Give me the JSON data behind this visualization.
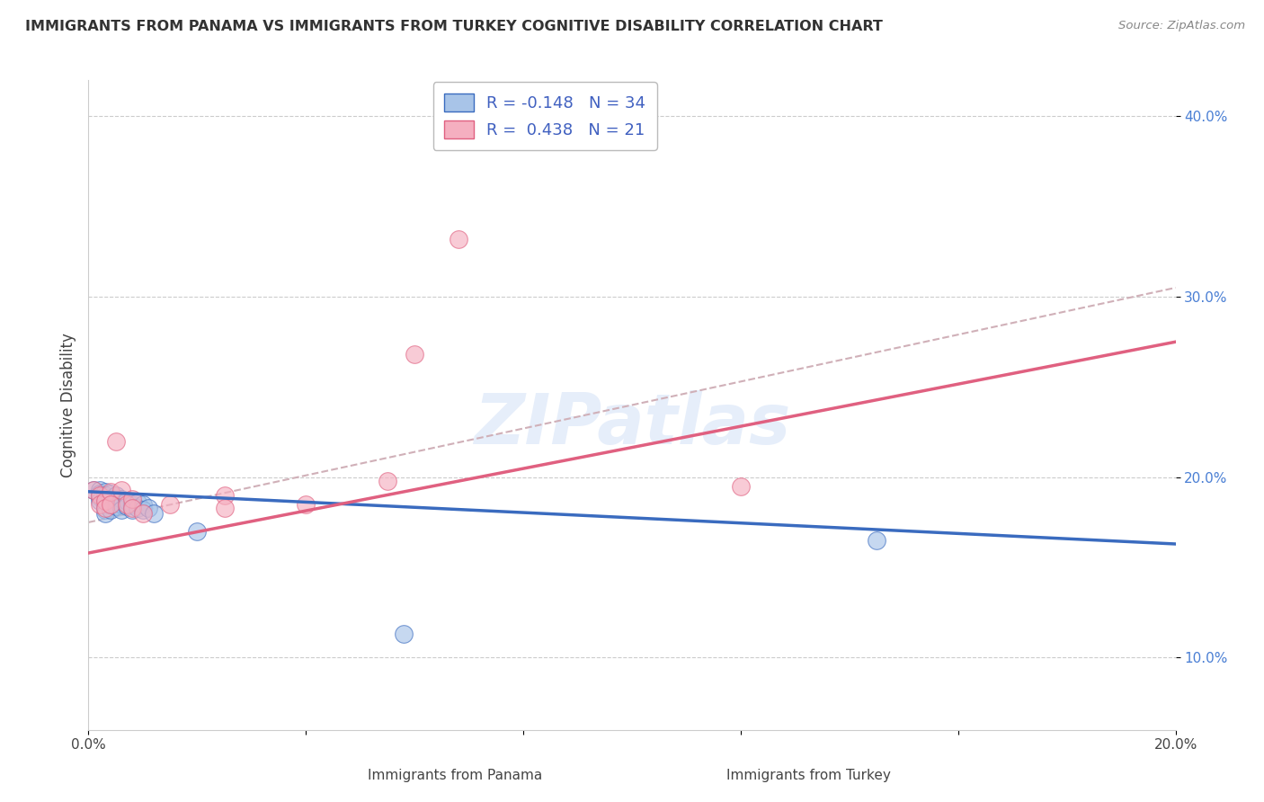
{
  "title": "IMMIGRANTS FROM PANAMA VS IMMIGRANTS FROM TURKEY COGNITIVE DISABILITY CORRELATION CHART",
  "source": "Source: ZipAtlas.com",
  "xlabel_panama": "Immigrants from Panama",
  "xlabel_turkey": "Immigrants from Turkey",
  "ylabel": "Cognitive Disability",
  "xlim": [
    0.0,
    0.2
  ],
  "ylim": [
    0.06,
    0.42
  ],
  "xticks": [
    0.0,
    0.04,
    0.08,
    0.12,
    0.16,
    0.2
  ],
  "xtick_labels": [
    "0.0%",
    "",
    "",
    "",
    "",
    "20.0%"
  ],
  "yticks": [
    0.1,
    0.2,
    0.3,
    0.4
  ],
  "ytick_labels": [
    "10.0%",
    "20.0%",
    "30.0%",
    "40.0%"
  ],
  "panama_R": -0.148,
  "panama_N": 34,
  "turkey_R": 0.438,
  "turkey_N": 21,
  "panama_color": "#a8c4e8",
  "turkey_color": "#f5afc0",
  "trend_panama_color": "#3a6bbf",
  "trend_turkey_color": "#e06080",
  "trend_dashed_color": "#d0b0b8",
  "panama_scatter": [
    [
      0.001,
      0.193
    ],
    [
      0.002,
      0.193
    ],
    [
      0.002,
      0.191
    ],
    [
      0.002,
      0.189
    ],
    [
      0.002,
      0.187
    ],
    [
      0.003,
      0.192
    ],
    [
      0.003,
      0.19
    ],
    [
      0.003,
      0.188
    ],
    [
      0.003,
      0.185
    ],
    [
      0.003,
      0.182
    ],
    [
      0.003,
      0.18
    ],
    [
      0.004,
      0.191
    ],
    [
      0.004,
      0.188
    ],
    [
      0.004,
      0.185
    ],
    [
      0.004,
      0.182
    ],
    [
      0.005,
      0.19
    ],
    [
      0.005,
      0.187
    ],
    [
      0.005,
      0.184
    ],
    [
      0.006,
      0.188
    ],
    [
      0.006,
      0.185
    ],
    [
      0.006,
      0.182
    ],
    [
      0.007,
      0.187
    ],
    [
      0.007,
      0.184
    ],
    [
      0.008,
      0.185
    ],
    [
      0.008,
      0.182
    ],
    [
      0.009,
      0.186
    ],
    [
      0.009,
      0.183
    ],
    [
      0.01,
      0.185
    ],
    [
      0.01,
      0.182
    ],
    [
      0.011,
      0.183
    ],
    [
      0.012,
      0.18
    ],
    [
      0.02,
      0.17
    ],
    [
      0.058,
      0.113
    ],
    [
      0.145,
      0.165
    ]
  ],
  "turkey_scatter": [
    [
      0.001,
      0.193
    ],
    [
      0.002,
      0.19
    ],
    [
      0.002,
      0.185
    ],
    [
      0.003,
      0.187
    ],
    [
      0.003,
      0.183
    ],
    [
      0.004,
      0.192
    ],
    [
      0.004,
      0.185
    ],
    [
      0.005,
      0.22
    ],
    [
      0.006,
      0.193
    ],
    [
      0.007,
      0.185
    ],
    [
      0.008,
      0.188
    ],
    [
      0.008,
      0.183
    ],
    [
      0.01,
      0.18
    ],
    [
      0.015,
      0.185
    ],
    [
      0.025,
      0.19
    ],
    [
      0.025,
      0.183
    ],
    [
      0.04,
      0.185
    ],
    [
      0.055,
      0.198
    ],
    [
      0.06,
      0.268
    ],
    [
      0.068,
      0.332
    ],
    [
      0.12,
      0.195
    ]
  ],
  "panama_trend_x": [
    0.0,
    0.2
  ],
  "panama_trend_y": [
    0.192,
    0.163
  ],
  "turkey_trend_x": [
    0.0,
    0.2
  ],
  "turkey_trend_y": [
    0.158,
    0.275
  ],
  "dashed_trend_x": [
    0.0,
    0.2
  ],
  "dashed_trend_y": [
    0.175,
    0.305
  ]
}
